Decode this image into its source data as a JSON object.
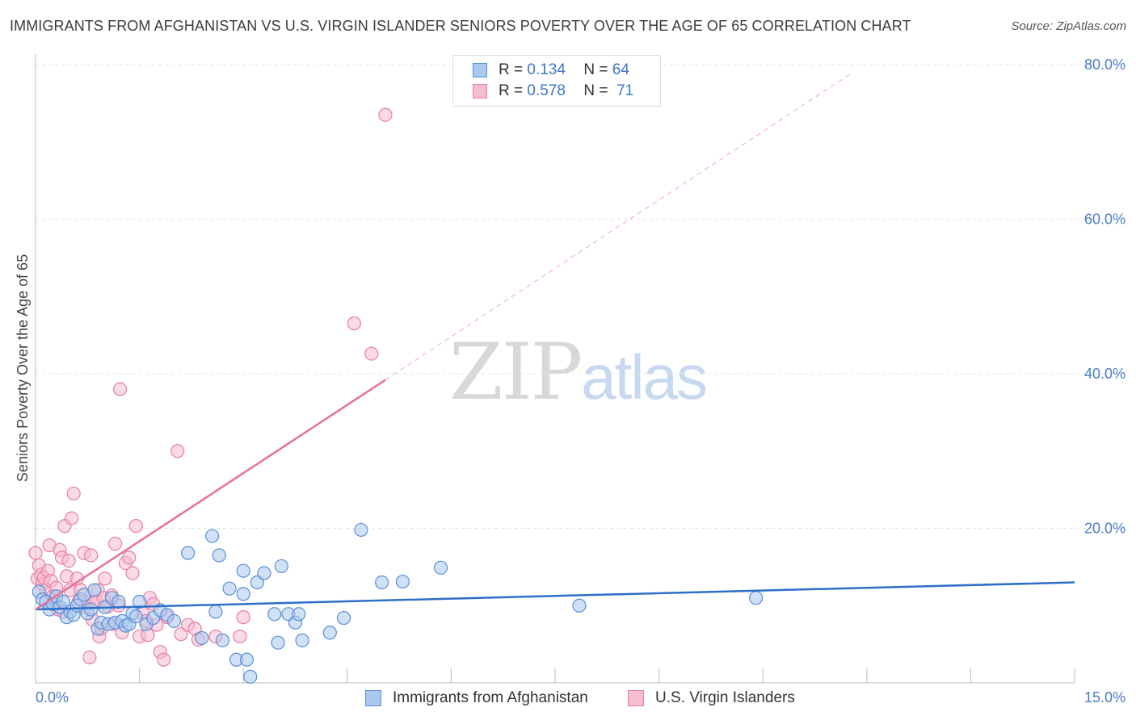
{
  "title": "IMMIGRANTS FROM AFGHANISTAN VS U.S. VIRGIN ISLANDER SENIORS POVERTY OVER THE AGE OF 65 CORRELATION CHART",
  "source": "Source: ZipAtlas.com",
  "watermark": {
    "zip": "ZIP",
    "atlas": "atlas"
  },
  "legend": {
    "rows": [
      {
        "r_label": "R =",
        "r_value": "0.134",
        "n_label": "N =",
        "n_value": "64"
      },
      {
        "r_label": "R =",
        "r_value": "0.578",
        "n_label": "N =",
        "n_value": "71"
      }
    ]
  },
  "bottom_legend": [
    "Immigrants from Afghanistan",
    "U.S. Virgin Islanders"
  ],
  "colors": {
    "blue_fill": "#a9c8ef",
    "blue_stroke": "#5b8fd6",
    "blue_line": "#2d6fc9",
    "pink_fill": "#f6bcd0",
    "pink_stroke": "#e87fa3",
    "pink_line": "#e8709a",
    "tick_text": "#4a7cc9"
  },
  "chart_data": {
    "type": "scatter",
    "title": "IMMIGRANTS FROM AFGHANISTAN VS U.S. VIRGIN ISLANDER SENIORS POVERTY OVER THE AGE OF 65 CORRELATION CHART",
    "xlabel": "",
    "ylabel": "Seniors Poverty Over the Age of 65",
    "xlim": [
      0,
      15
    ],
    "ylim": [
      0,
      80
    ],
    "x_tick_labels": [
      "0.0%",
      "15.0%"
    ],
    "y_tick_labels": [
      "20.0%",
      "40.0%",
      "60.0%",
      "80.0%"
    ],
    "y_ticks": [
      20,
      40,
      60,
      80
    ],
    "x_gridline_ticks": [
      1.5,
      3,
      4.5,
      6,
      7.5,
      9,
      10.5,
      12,
      13.5,
      15
    ],
    "grid": true,
    "legend_position": "top-center",
    "series": [
      {
        "name": "Immigrants from Afghanistan",
        "color": "blue",
        "r": 0.134,
        "n": 64,
        "trend": {
          "x": [
            0,
            15
          ],
          "y": [
            9.5,
            13.0
          ],
          "style": "solid"
        },
        "points": [
          [
            0.05,
            11.8
          ],
          [
            0.1,
            10.8
          ],
          [
            0.15,
            10.5
          ],
          [
            0.2,
            9.5
          ],
          [
            0.25,
            10.2
          ],
          [
            0.3,
            11.2
          ],
          [
            0.35,
            9.8
          ],
          [
            0.4,
            10.5
          ],
          [
            0.45,
            8.5
          ],
          [
            0.5,
            9.2
          ],
          [
            0.55,
            8.8
          ],
          [
            0.6,
            10.0
          ],
          [
            0.65,
            10.8
          ],
          [
            0.7,
            11.4
          ],
          [
            0.75,
            9.0
          ],
          [
            0.8,
            9.5
          ],
          [
            0.85,
            12.0
          ],
          [
            0.9,
            7.0
          ],
          [
            0.95,
            7.8
          ],
          [
            1.0,
            9.8
          ],
          [
            1.05,
            7.6
          ],
          [
            1.1,
            11.0
          ],
          [
            1.15,
            7.8
          ],
          [
            1.2,
            10.5
          ],
          [
            1.25,
            8.0
          ],
          [
            1.3,
            7.4
          ],
          [
            1.35,
            7.6
          ],
          [
            1.4,
            9.0
          ],
          [
            1.45,
            8.6
          ],
          [
            1.5,
            10.5
          ],
          [
            1.6,
            7.6
          ],
          [
            1.7,
            8.4
          ],
          [
            1.8,
            9.4
          ],
          [
            1.9,
            8.8
          ],
          [
            2.0,
            8.0
          ],
          [
            2.2,
            16.8
          ],
          [
            2.4,
            5.8
          ],
          [
            2.55,
            19.0
          ],
          [
            2.6,
            9.2
          ],
          [
            2.65,
            16.5
          ],
          [
            2.7,
            5.5
          ],
          [
            2.8,
            12.2
          ],
          [
            2.9,
            3.0
          ],
          [
            3.0,
            14.5
          ],
          [
            3.0,
            11.5
          ],
          [
            3.05,
            3.0
          ],
          [
            3.1,
            0.8
          ],
          [
            3.2,
            13.0
          ],
          [
            3.3,
            14.2
          ],
          [
            3.45,
            8.9
          ],
          [
            3.5,
            5.2
          ],
          [
            3.55,
            15.1
          ],
          [
            3.65,
            8.9
          ],
          [
            3.75,
            7.8
          ],
          [
            3.8,
            8.9
          ],
          [
            3.85,
            5.5
          ],
          [
            4.25,
            6.5
          ],
          [
            4.45,
            8.4
          ],
          [
            4.7,
            19.8
          ],
          [
            5.0,
            13.0
          ],
          [
            5.3,
            13.1
          ],
          [
            5.85,
            14.9
          ],
          [
            7.85,
            10.0
          ],
          [
            10.4,
            11.0
          ]
        ]
      },
      {
        "name": "U.S. Virgin Islanders",
        "color": "pink",
        "r": 0.578,
        "n": 71,
        "trend_solid": {
          "x": [
            0,
            5.05
          ],
          "y": [
            9.5,
            39.2
          ]
        },
        "trend_dashed": {
          "x": [
            5.05,
            11.8
          ],
          "y": [
            39.2,
            79.0
          ]
        },
        "points": [
          [
            0.0,
            16.8
          ],
          [
            0.03,
            13.5
          ],
          [
            0.05,
            15.2
          ],
          [
            0.08,
            14.0
          ],
          [
            0.1,
            12.8
          ],
          [
            0.12,
            13.6
          ],
          [
            0.15,
            12.0
          ],
          [
            0.18,
            14.5
          ],
          [
            0.2,
            17.8
          ],
          [
            0.22,
            13.2
          ],
          [
            0.25,
            11.2
          ],
          [
            0.28,
            10.5
          ],
          [
            0.3,
            12.3
          ],
          [
            0.32,
            9.5
          ],
          [
            0.35,
            17.2
          ],
          [
            0.38,
            16.2
          ],
          [
            0.4,
            9.2
          ],
          [
            0.42,
            20.3
          ],
          [
            0.45,
            13.8
          ],
          [
            0.48,
            15.8
          ],
          [
            0.5,
            12.0
          ],
          [
            0.52,
            21.3
          ],
          [
            0.55,
            24.5
          ],
          [
            0.6,
            13.5
          ],
          [
            0.62,
            10.5
          ],
          [
            0.65,
            12.0
          ],
          [
            0.7,
            16.8
          ],
          [
            0.72,
            9.8
          ],
          [
            0.75,
            10.5
          ],
          [
            0.78,
            3.3
          ],
          [
            0.8,
            16.5
          ],
          [
            0.82,
            8.2
          ],
          [
            0.85,
            10.5
          ],
          [
            0.88,
            10.6
          ],
          [
            0.9,
            12.0
          ],
          [
            0.92,
            6.0
          ],
          [
            0.95,
            7.0
          ],
          [
            0.98,
            11.0
          ],
          [
            1.0,
            13.5
          ],
          [
            1.05,
            9.9
          ],
          [
            1.1,
            11.3
          ],
          [
            1.12,
            7.6
          ],
          [
            1.15,
            18.0
          ],
          [
            1.2,
            10.0
          ],
          [
            1.22,
            38.0
          ],
          [
            1.25,
            6.5
          ],
          [
            1.3,
            15.5
          ],
          [
            1.35,
            16.2
          ],
          [
            1.4,
            14.2
          ],
          [
            1.45,
            20.3
          ],
          [
            1.5,
            6.0
          ],
          [
            1.55,
            9.0
          ],
          [
            1.6,
            8.0
          ],
          [
            1.62,
            6.2
          ],
          [
            1.65,
            11.0
          ],
          [
            1.7,
            10.2
          ],
          [
            1.75,
            7.5
          ],
          [
            1.8,
            4.0
          ],
          [
            1.85,
            3.0
          ],
          [
            1.9,
            8.5
          ],
          [
            2.05,
            30.0
          ],
          [
            2.1,
            6.3
          ],
          [
            2.2,
            7.5
          ],
          [
            2.3,
            7.0
          ],
          [
            2.35,
            5.6
          ],
          [
            2.6,
            6.0
          ],
          [
            2.95,
            6.0
          ],
          [
            3.0,
            8.5
          ],
          [
            4.6,
            46.5
          ],
          [
            4.85,
            42.6
          ],
          [
            5.05,
            73.5
          ]
        ]
      }
    ]
  }
}
